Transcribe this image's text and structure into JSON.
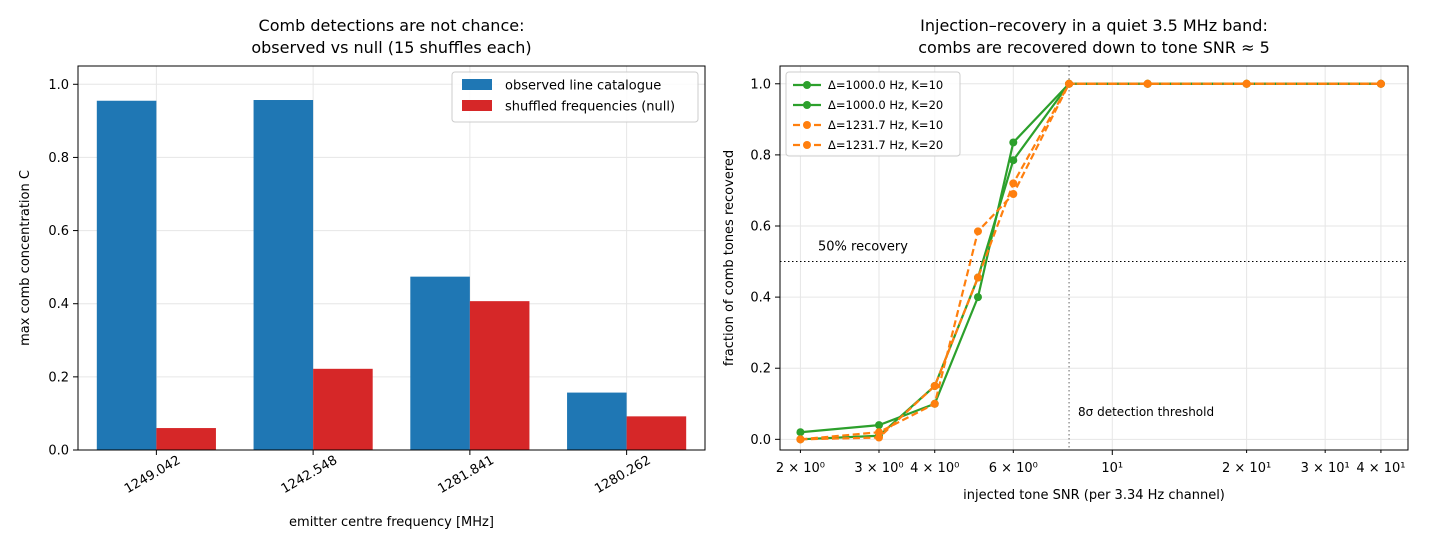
{
  "chart_data": [
    {
      "type": "bar",
      "title": "Comb detections are not chance:\nobserved vs null (15 shuffles each)",
      "xlabel": "emitter centre frequency [MHz]",
      "ylabel": "max comb concentration  C",
      "categories": [
        "1249.042",
        "1242.548",
        "1281.841",
        "1280.262"
      ],
      "series": [
        {
          "name": "observed line catalogue",
          "color": "#1f77b4",
          "values": [
            0.955,
            0.957,
            0.474,
            0.157
          ]
        },
        {
          "name": "shuffled frequencies (null)",
          "color": "#d62728",
          "values": [
            0.06,
            0.222,
            0.407,
            0.092
          ]
        }
      ],
      "ylim": [
        0,
        1.05
      ],
      "yticks": [
        "0.0",
        "0.2",
        "0.4",
        "0.6",
        "0.8",
        "1.0"
      ],
      "grid": true,
      "legend_position": "top-right"
    },
    {
      "type": "line",
      "title": "Injection–recovery in a quiet 3.5 MHz band:\ncombs are recovered down to tone SNR ≈ 5",
      "xlabel": "injected tone SNR (per 3.34 Hz channel)",
      "ylabel": "fraction of comb tones recovered",
      "x_scale": "log",
      "xlim": [
        1.8,
        46
      ],
      "ylim": [
        -0.03,
        1.05
      ],
      "x_ticklabels": [
        {
          "value": 2,
          "label": "2 × 10⁰"
        },
        {
          "value": 3,
          "label": "3 × 10⁰"
        },
        {
          "value": 4,
          "label": "4 × 10⁰"
        },
        {
          "value": 6,
          "label": "6 × 10⁰"
        },
        {
          "value": 10,
          "label": "10¹"
        },
        {
          "value": 20,
          "label": "2 × 10¹"
        },
        {
          "value": 30,
          "label": "3 × 10¹"
        },
        {
          "value": 40,
          "label": "4 × 10¹"
        }
      ],
      "yticks": [
        "0.0",
        "0.2",
        "0.4",
        "0.6",
        "0.8",
        "1.0"
      ],
      "x": [
        2,
        3,
        4,
        5,
        6,
        8,
        12,
        20,
        40
      ],
      "series": [
        {
          "name": "Δ=1000.0 Hz, K=10",
          "color": "#2ca02c",
          "dashed": false,
          "values": [
            0.02,
            0.04,
            0.1,
            0.4,
            0.835,
            1.0,
            1.0,
            1.0,
            1.0
          ]
        },
        {
          "name": "Δ=1000.0 Hz, K=20",
          "color": "#2ca02c",
          "dashed": false,
          "values": [
            0.0,
            0.01,
            0.15,
            0.455,
            0.785,
            1.0,
            1.0,
            1.0,
            1.0
          ]
        },
        {
          "name": "Δ=1231.7 Hz, K=10",
          "color": "#ff7f0e",
          "dashed": true,
          "values": [
            0.0,
            0.02,
            0.1,
            0.585,
            0.69,
            1.0,
            1.0,
            1.0,
            1.0
          ]
        },
        {
          "name": "Δ=1231.7 Hz, K=20",
          "color": "#ff7f0e",
          "dashed": true,
          "values": [
            0.0,
            0.005,
            0.15,
            0.455,
            0.72,
            1.0,
            1.0,
            1.0,
            1.0
          ]
        }
      ],
      "hline": {
        "y": 0.5,
        "label": "50% recovery"
      },
      "vline": {
        "x": 8,
        "label": "8σ detection threshold"
      },
      "grid": true,
      "legend_position": "top-left"
    }
  ]
}
